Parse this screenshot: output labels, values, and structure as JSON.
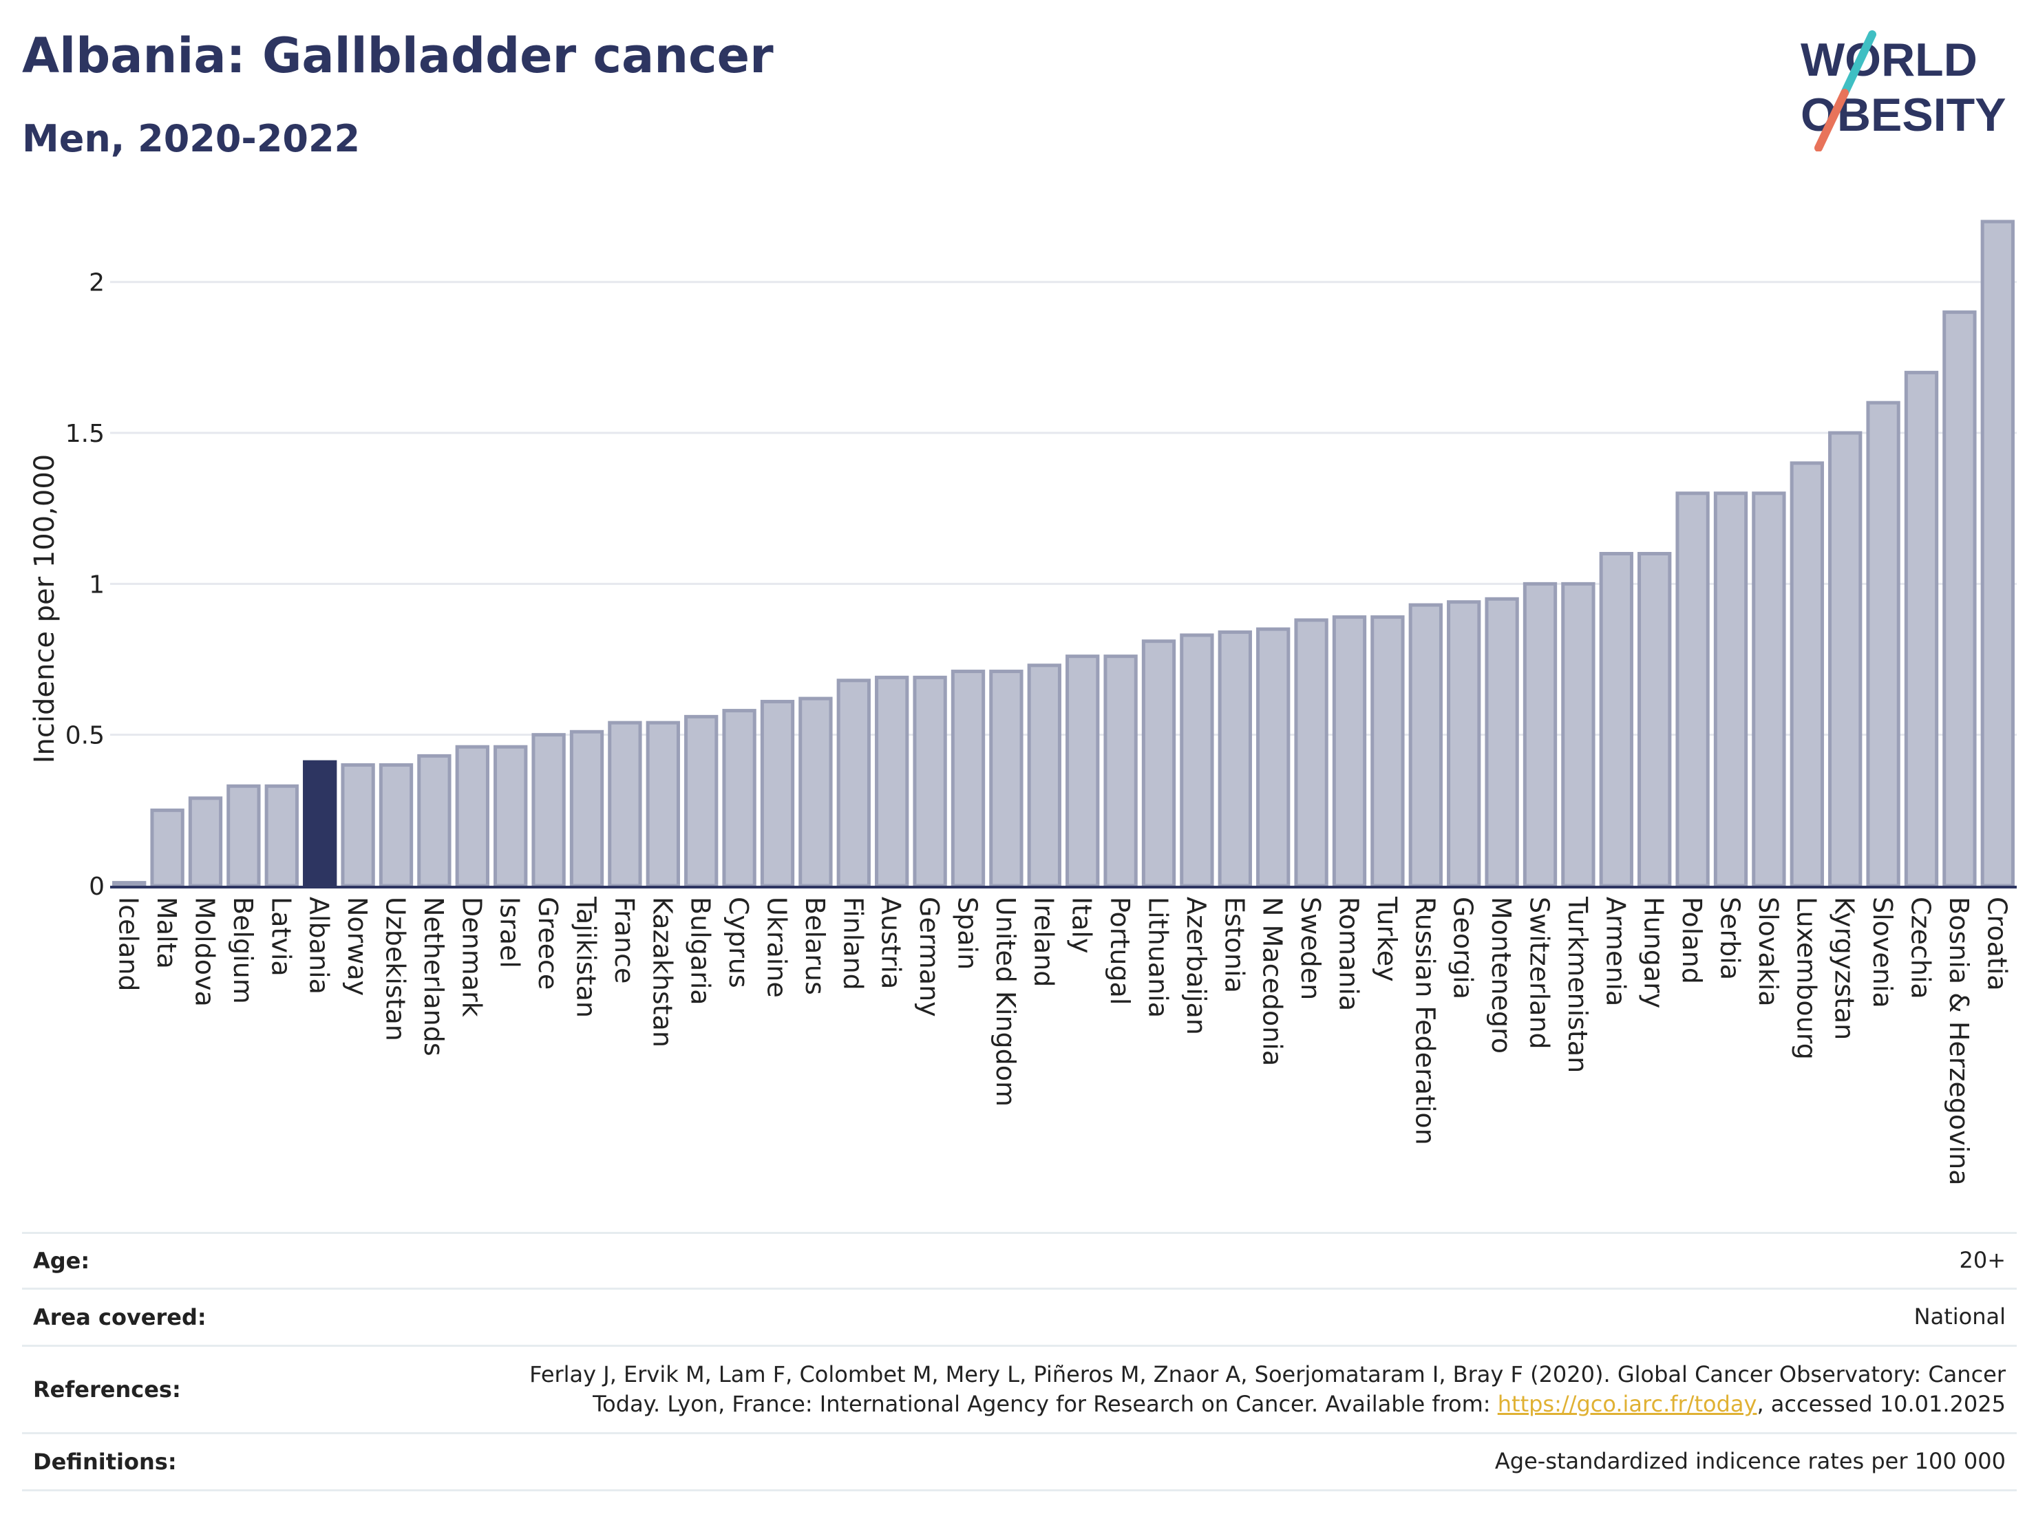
{
  "header": {
    "title": "Albania: Gallbladder cancer",
    "subtitle": "Men, 2020-2022",
    "logo_line1": "WORLD",
    "logo_line2": "OBESITY"
  },
  "colors": {
    "bar_fill": "#bcc0d0",
    "bar_stroke": "#9a9fb7",
    "highlight": "#2d3561",
    "logo_slash_teal": "#3fbfc3",
    "logo_slash_coral": "#e8735a",
    "link": "#e0b133"
  },
  "chart_data": {
    "type": "bar",
    "ylabel": "Incidence per 100,000",
    "ylim": [
      0,
      2.2
    ],
    "yticks": [
      0,
      0.5,
      1,
      1.5,
      2
    ],
    "ytick_labels": [
      "0",
      "0.5",
      "1",
      "1.5",
      "2"
    ],
    "highlight_category": "Albania",
    "grid": true,
    "categories": [
      "Iceland",
      "Malta",
      "Moldova",
      "Belgium",
      "Latvia",
      "Albania",
      "Norway",
      "Uzbekistan",
      "Netherlands",
      "Denmark",
      "Israel",
      "Greece",
      "Tajikistan",
      "France",
      "Kazakhstan",
      "Bulgaria",
      "Cyprus",
      "Ukraine",
      "Belarus",
      "Finland",
      "Austria",
      "Germany",
      "Spain",
      "United Kingdom",
      "Ireland",
      "Italy",
      "Portugal",
      "Lithuania",
      "Azerbaijan",
      "Estonia",
      "N Macedonia",
      "Sweden",
      "Romania",
      "Turkey",
      "Russian Federation",
      "Georgia",
      "Montenegro",
      "Switzerland",
      "Turkmenistan",
      "Armenia",
      "Hungary",
      "Poland",
      "Serbia",
      "Slovakia",
      "Luxembourg",
      "Kyrgyzstan",
      "Slovenia",
      "Czechia",
      "Bosnia & Herzegovina",
      "Croatia"
    ],
    "values": [
      0.01,
      0.25,
      0.29,
      0.33,
      0.33,
      0.41,
      0.4,
      0.4,
      0.43,
      0.46,
      0.46,
      0.5,
      0.51,
      0.54,
      0.54,
      0.56,
      0.58,
      0.61,
      0.62,
      0.68,
      0.69,
      0.69,
      0.71,
      0.71,
      0.73,
      0.76,
      0.76,
      0.81,
      0.83,
      0.84,
      0.85,
      0.88,
      0.89,
      0.89,
      0.93,
      0.94,
      0.95,
      1.0,
      1.0,
      1.1,
      1.1,
      1.3,
      1.3,
      1.3,
      1.4,
      1.5,
      1.6,
      1.7,
      1.9,
      2.2
    ]
  },
  "meta": {
    "age_label": "Age:",
    "age_value": "20+",
    "area_label": "Area covered:",
    "area_value": "National",
    "references_label": "References:",
    "references_line1": "Ferlay J, Ervik M, Lam F, Colombet M, Mery L, Piñeros M, Znaor A, Soerjomataram I, Bray F (2020). Global Cancer Observatory: Cancer",
    "references_line2_pre": "Today. Lyon, France: International Agency for Research on Cancer. Available from: ",
    "references_link": "https://gco.iarc.fr/today",
    "references_line2_post": ", accessed 10.01.2025",
    "definitions_label": "Definitions:",
    "definitions_value": "Age-standardized indicence rates per 100 000"
  }
}
